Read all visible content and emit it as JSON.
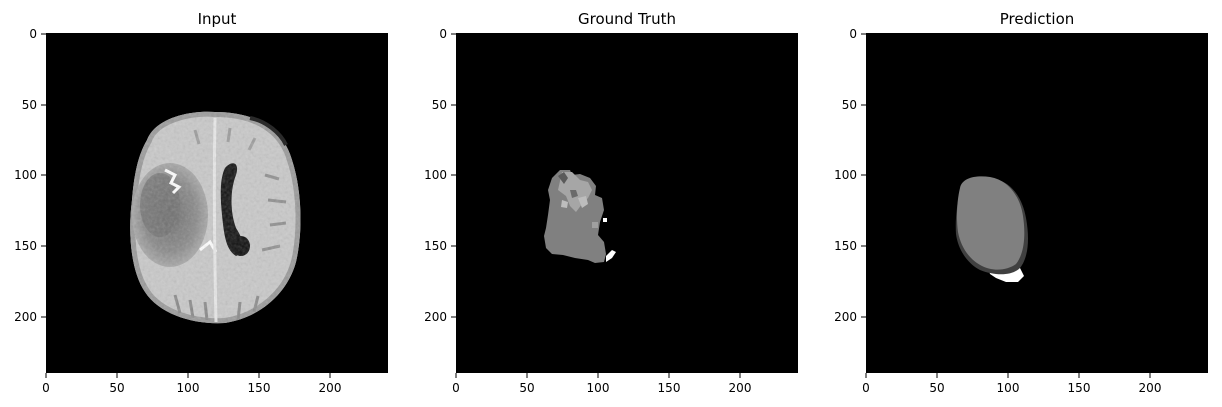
{
  "figure": {
    "panels": [
      {
        "title": "Input",
        "xticks": [
          "0",
          "50",
          "100",
          "150",
          "200"
        ],
        "yticks": [
          "0",
          "50",
          "100",
          "150",
          "200"
        ]
      },
      {
        "title": "Ground Truth",
        "xticks": [
          "0",
          "50",
          "100",
          "150",
          "200"
        ],
        "yticks": [
          "0",
          "50",
          "100",
          "150",
          "200"
        ]
      },
      {
        "title": "Prediction",
        "xticks": [
          "0",
          "50",
          "100",
          "150",
          "200"
        ],
        "yticks": [
          "0",
          "50",
          "100",
          "150",
          "200"
        ]
      }
    ],
    "image_size": 240,
    "tick_values": [
      0,
      50,
      100,
      150,
      200
    ],
    "colors": {
      "background": "#000000",
      "gray_label": "#808080",
      "dark_label": "#404040",
      "white_label": "#ffffff"
    }
  }
}
